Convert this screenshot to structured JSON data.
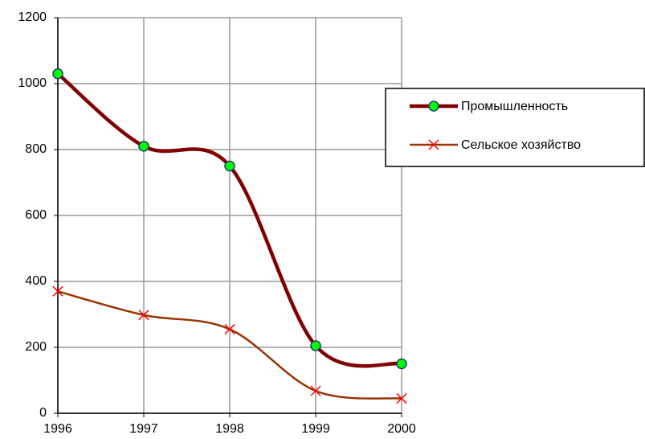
{
  "chart_data": {
    "type": "line",
    "x": [
      1996,
      1997,
      1998,
      1999,
      2000
    ],
    "series": [
      {
        "name": "Промышленность",
        "color": "#800000",
        "marker": "circle",
        "marker_color": "#00ff00",
        "values": [
          1030,
          810,
          750,
          205,
          150
        ]
      },
      {
        "name": "Сельское хозяйство",
        "color": "#993300",
        "marker": "x",
        "marker_color": "#ff0000",
        "values": [
          370,
          298,
          255,
          68,
          45
        ]
      }
    ],
    "xlim": [
      1996,
      2000
    ],
    "xticks": [
      1996,
      1997,
      1998,
      1999,
      2000
    ],
    "ylim": [
      0,
      1200
    ],
    "yticks": [
      0,
      200,
      400,
      600,
      800,
      1000,
      1200
    ],
    "grid": true,
    "legend": "right",
    "smooth": true
  }
}
